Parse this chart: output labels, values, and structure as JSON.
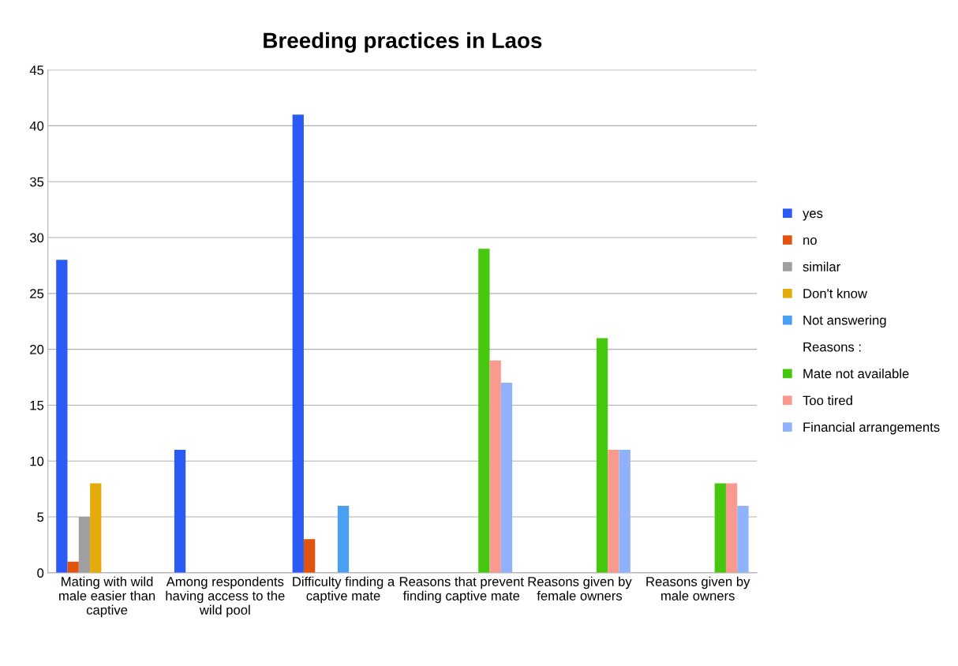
{
  "chart_data": {
    "type": "bar",
    "title": "Breeding practices in Laos",
    "categories": [
      "Mating with wild male easier than captive",
      "Among respondents having access to the wild pool",
      "Difficulty finding a captive mate",
      "Reasons that prevent finding captive mate",
      "Reasons given by female owners",
      "Reasons given by male owners"
    ],
    "series": [
      {
        "name": "yes",
        "color": "#2a5cf5",
        "values": [
          28,
          11,
          41,
          null,
          null,
          null
        ]
      },
      {
        "name": "no",
        "color": "#e0540f",
        "values": [
          1,
          null,
          3,
          null,
          null,
          null
        ]
      },
      {
        "name": "similar",
        "color": "#a0a0a0",
        "values": [
          5,
          null,
          null,
          null,
          null,
          null
        ]
      },
      {
        "name": "Don't know",
        "color": "#e3ab0c",
        "values": [
          8,
          null,
          null,
          null,
          null,
          null
        ]
      },
      {
        "name": "Not answering",
        "color": "#4a9ff0",
        "values": [
          null,
          null,
          6,
          null,
          null,
          null
        ]
      },
      {
        "name": "Reasons :",
        "values": [
          null,
          null,
          null,
          null,
          null,
          null
        ]
      },
      {
        "name": "Mate not available",
        "color": "#45c80f",
        "values": [
          null,
          null,
          null,
          29,
          21,
          8
        ]
      },
      {
        "name": "Too tired",
        "color": "#f89a8e",
        "values": [
          null,
          null,
          null,
          19,
          11,
          8
        ]
      },
      {
        "name": "Financial arrangements",
        "color": "#90b2fc",
        "values": [
          null,
          null,
          null,
          17,
          11,
          6
        ]
      }
    ],
    "ylim": [
      0,
      45
    ],
    "yticks": [
      0,
      5,
      10,
      15,
      20,
      25,
      30,
      35,
      40,
      45
    ],
    "grid": "y",
    "legend": "right"
  }
}
